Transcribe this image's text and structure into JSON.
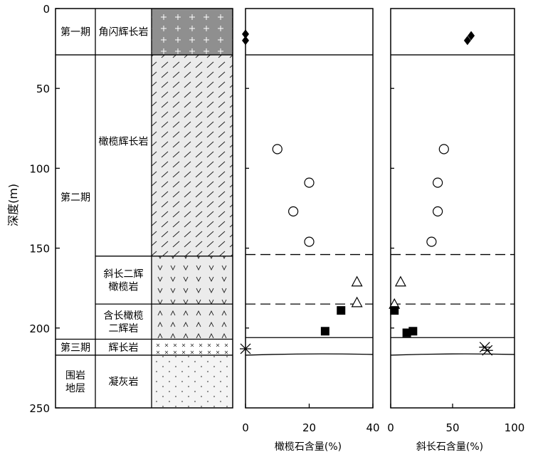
{
  "y_axis": {
    "label": "深度(m)",
    "ticks": [
      0,
      50,
      100,
      150,
      200,
      250
    ],
    "range": [
      0,
      250
    ]
  },
  "stages": [
    {
      "name": "第一期",
      "top": 0,
      "bottom": 29
    },
    {
      "name": "第二期",
      "top": 29,
      "bottom": 207
    },
    {
      "name": "第三期",
      "top": 207,
      "bottom": 217
    },
    {
      "name": "围岩\n地层",
      "top": 217,
      "bottom": 250
    }
  ],
  "rocks": [
    {
      "name": "角闪辉长岩",
      "top": 0,
      "bottom": 29,
      "pattern": "cross-on-grey"
    },
    {
      "name": "橄榄辉长岩",
      "top": 29,
      "bottom": 155,
      "pattern": "slash"
    },
    {
      "name": "斜长二辉\n橄榄岩",
      "top": 155,
      "bottom": 185,
      "pattern": "v"
    },
    {
      "name": "含长橄榄\n二辉岩",
      "top": 185,
      "bottom": 207,
      "pattern": "caret"
    },
    {
      "name": "辉长岩",
      "top": 207,
      "bottom": 217,
      "pattern": "x"
    },
    {
      "name": "凝灰岩",
      "top": 217,
      "bottom": 250,
      "pattern": "dots"
    }
  ],
  "boundaries": [
    {
      "depth": 29,
      "style": "solid"
    },
    {
      "depth": 154,
      "style": "dashed"
    },
    {
      "depth": 185,
      "style": "dashed"
    },
    {
      "depth": 206,
      "style": "solid"
    },
    {
      "depth": 217,
      "style": "solid"
    }
  ],
  "chart_data": [
    {
      "type": "scatter",
      "xlabel": "橄榄石含量(%)",
      "xlim": [
        0,
        40
      ],
      "x_ticks": [
        0,
        20,
        40
      ],
      "y_axis": "depth",
      "series": [
        {
          "marker": "filled-diamond",
          "points": [
            {
              "x": 0,
              "y": 16
            },
            {
              "x": 0,
              "y": 20
            }
          ]
        },
        {
          "marker": "open-circle",
          "points": [
            {
              "x": 10,
              "y": 88
            },
            {
              "x": 20,
              "y": 109
            },
            {
              "x": 15,
              "y": 127
            },
            {
              "x": 20,
              "y": 146
            }
          ]
        },
        {
          "marker": "open-triangle",
          "points": [
            {
              "x": 35,
              "y": 171
            },
            {
              "x": 35,
              "y": 184
            }
          ]
        },
        {
          "marker": "filled-square",
          "points": [
            {
              "x": 30,
              "y": 189
            },
            {
              "x": 25,
              "y": 202
            }
          ]
        },
        {
          "marker": "asterisk-x",
          "points": [
            {
              "x": 0,
              "y": 213
            }
          ]
        }
      ]
    },
    {
      "type": "scatter",
      "xlabel": "斜长石含量(%)",
      "xlim": [
        0,
        100
      ],
      "x_ticks": [
        0,
        50,
        100
      ],
      "y_axis": "depth",
      "series": [
        {
          "marker": "filled-diamond",
          "points": [
            {
              "x": 65,
              "y": 17
            },
            {
              "x": 62,
              "y": 20
            }
          ]
        },
        {
          "marker": "open-circle",
          "points": [
            {
              "x": 43,
              "y": 88
            },
            {
              "x": 38,
              "y": 109
            },
            {
              "x": 38,
              "y": 127
            },
            {
              "x": 33,
              "y": 146
            }
          ]
        },
        {
          "marker": "open-triangle",
          "points": [
            {
              "x": 8,
              "y": 171
            },
            {
              "x": 3,
              "y": 185
            }
          ]
        },
        {
          "marker": "filled-square",
          "points": [
            {
              "x": 3,
              "y": 189
            },
            {
              "x": 13,
              "y": 203
            },
            {
              "x": 18,
              "y": 202
            }
          ]
        },
        {
          "marker": "asterisk-x",
          "points": [
            {
              "x": 76,
              "y": 212
            },
            {
              "x": 78,
              "y": 214
            }
          ]
        }
      ]
    }
  ]
}
